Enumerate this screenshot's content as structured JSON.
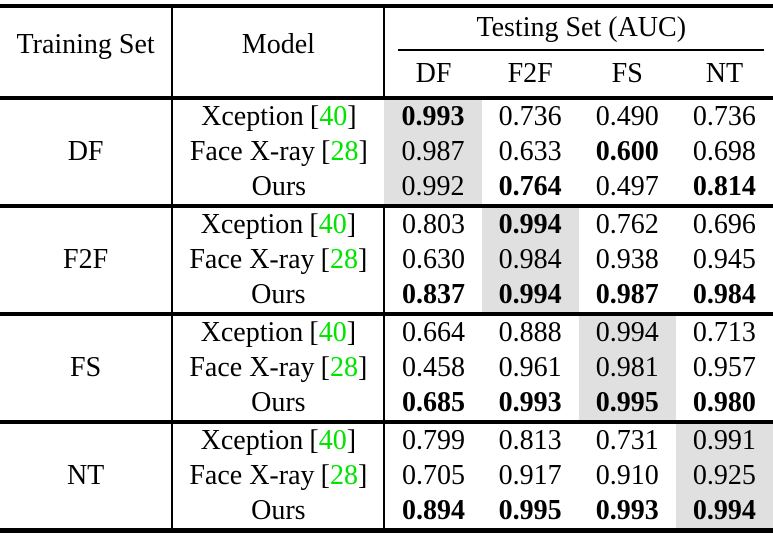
{
  "table": {
    "header": {
      "training_set": "Training Set",
      "model": "Model",
      "testing_set": "Testing Set (AUC)",
      "sub_columns": [
        "DF",
        "F2F",
        "FS",
        "NT"
      ]
    },
    "colors": {
      "highlight": "#e0e0e0",
      "citation": "#00e400",
      "rule": "#000000"
    },
    "groups": [
      {
        "training_set": "DF",
        "highlight_col": 0,
        "rows": [
          {
            "model": "Xception",
            "cite": "40",
            "values": [
              {
                "v": "0.993",
                "bold": true
              },
              {
                "v": "0.736",
                "bold": false
              },
              {
                "v": "0.490",
                "bold": false
              },
              {
                "v": "0.736",
                "bold": false
              }
            ]
          },
          {
            "model": "Face X-ray",
            "cite": "28",
            "values": [
              {
                "v": "0.987",
                "bold": false
              },
              {
                "v": "0.633",
                "bold": false
              },
              {
                "v": "0.600",
                "bold": true
              },
              {
                "v": "0.698",
                "bold": false
              }
            ]
          },
          {
            "model": "Ours",
            "cite": null,
            "values": [
              {
                "v": "0.992",
                "bold": false
              },
              {
                "v": "0.764",
                "bold": true
              },
              {
                "v": "0.497",
                "bold": false
              },
              {
                "v": "0.814",
                "bold": true
              }
            ]
          }
        ]
      },
      {
        "training_set": "F2F",
        "highlight_col": 1,
        "rows": [
          {
            "model": "Xception",
            "cite": "40",
            "values": [
              {
                "v": "0.803",
                "bold": false
              },
              {
                "v": "0.994",
                "bold": true
              },
              {
                "v": "0.762",
                "bold": false
              },
              {
                "v": "0.696",
                "bold": false
              }
            ]
          },
          {
            "model": "Face X-ray",
            "cite": "28",
            "values": [
              {
                "v": "0.630",
                "bold": false
              },
              {
                "v": "0.984",
                "bold": false
              },
              {
                "v": "0.938",
                "bold": false
              },
              {
                "v": "0.945",
                "bold": false
              }
            ]
          },
          {
            "model": "Ours",
            "cite": null,
            "values": [
              {
                "v": "0.837",
                "bold": true
              },
              {
                "v": "0.994",
                "bold": true
              },
              {
                "v": "0.987",
                "bold": true
              },
              {
                "v": "0.984",
                "bold": true
              }
            ]
          }
        ]
      },
      {
        "training_set": "FS",
        "highlight_col": 2,
        "rows": [
          {
            "model": "Xception",
            "cite": "40",
            "values": [
              {
                "v": "0.664",
                "bold": false
              },
              {
                "v": "0.888",
                "bold": false
              },
              {
                "v": "0.994",
                "bold": false
              },
              {
                "v": "0.713",
                "bold": false
              }
            ]
          },
          {
            "model": "Face X-ray",
            "cite": "28",
            "values": [
              {
                "v": "0.458",
                "bold": false
              },
              {
                "v": "0.961",
                "bold": false
              },
              {
                "v": "0.981",
                "bold": false
              },
              {
                "v": "0.957",
                "bold": false
              }
            ]
          },
          {
            "model": "Ours",
            "cite": null,
            "values": [
              {
                "v": "0.685",
                "bold": true
              },
              {
                "v": "0.993",
                "bold": true
              },
              {
                "v": "0.995",
                "bold": true
              },
              {
                "v": "0.980",
                "bold": true
              }
            ]
          }
        ]
      },
      {
        "training_set": "NT",
        "highlight_col": 3,
        "rows": [
          {
            "model": "Xception",
            "cite": "40",
            "values": [
              {
                "v": "0.799",
                "bold": false
              },
              {
                "v": "0.813",
                "bold": false
              },
              {
                "v": "0.731",
                "bold": false
              },
              {
                "v": "0.991",
                "bold": false
              }
            ]
          },
          {
            "model": "Face X-ray",
            "cite": "28",
            "values": [
              {
                "v": "0.705",
                "bold": false
              },
              {
                "v": "0.917",
                "bold": false
              },
              {
                "v": "0.910",
                "bold": false
              },
              {
                "v": "0.925",
                "bold": false
              }
            ]
          },
          {
            "model": "Ours",
            "cite": null,
            "values": [
              {
                "v": "0.894",
                "bold": true
              },
              {
                "v": "0.995",
                "bold": true
              },
              {
                "v": "0.993",
                "bold": true
              },
              {
                "v": "0.994",
                "bold": true
              }
            ]
          }
        ]
      }
    ]
  }
}
